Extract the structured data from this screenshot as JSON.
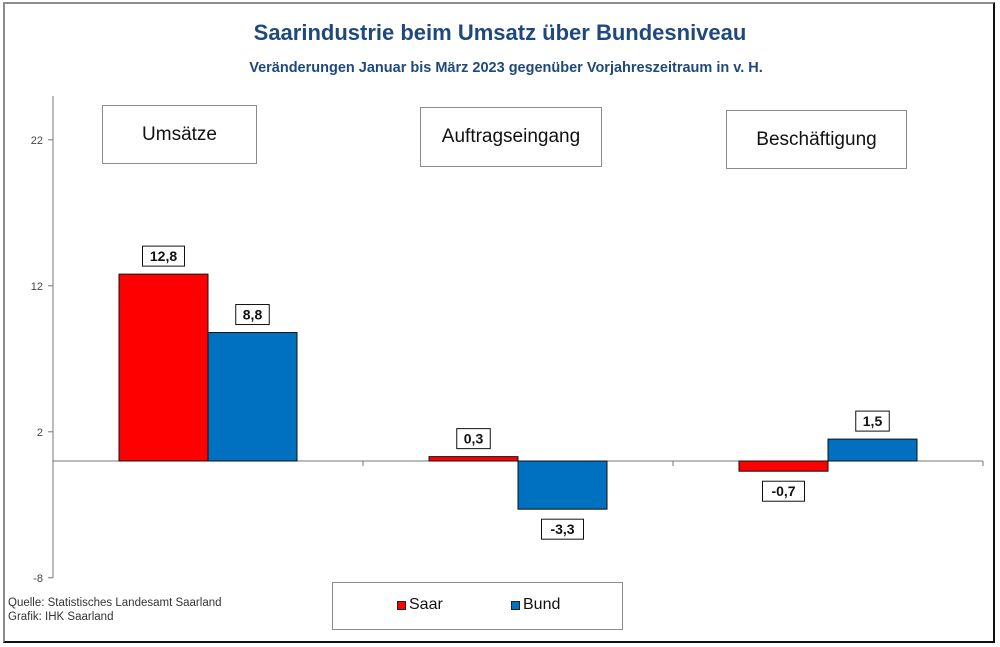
{
  "title": "Saarindustrie beim Umsatz über Bundesniveau",
  "subtitle": "Veränderungen Januar bis März 2023 gegenüber Vorjahreszeitraum in v. H.",
  "source_lines": [
    "Quelle: Statistisches Landesamt Saarland",
    "Grafik: IHK Saarland"
  ],
  "colors": {
    "saar": "#ff0000",
    "bund": "#0070c0",
    "title": "#1f497d"
  },
  "chart_data": {
    "type": "bar",
    "title": "Saarindustrie beim Umsatz über Bundesniveau",
    "subtitle": "Veränderungen Januar bis März 2023 gegenüber Vorjahreszeitraum in v. H.",
    "categories": [
      "Umsätze",
      "Auftragseingang",
      "Beschäftigung"
    ],
    "series": [
      {
        "name": "Saar",
        "color": "#ff0000",
        "values": [
          12.8,
          0.3,
          -0.7
        ],
        "labels": [
          "12,8",
          "0,3",
          "-0,7"
        ]
      },
      {
        "name": "Bund",
        "color": "#0070c0",
        "values": [
          8.8,
          -3.3,
          1.5
        ],
        "labels": [
          "8,8",
          "-3,3",
          "1,5"
        ]
      }
    ],
    "xlabel": "",
    "ylabel": "",
    "ylim": [
      -8,
      25
    ],
    "yticks": [
      22,
      12,
      2,
      -8
    ],
    "ytick_labels": [
      "22",
      "12",
      "2",
      "-8"
    ],
    "grid": false,
    "legend": {
      "position": "bottom-center",
      "entries": [
        "Saar",
        "Bund"
      ]
    }
  }
}
